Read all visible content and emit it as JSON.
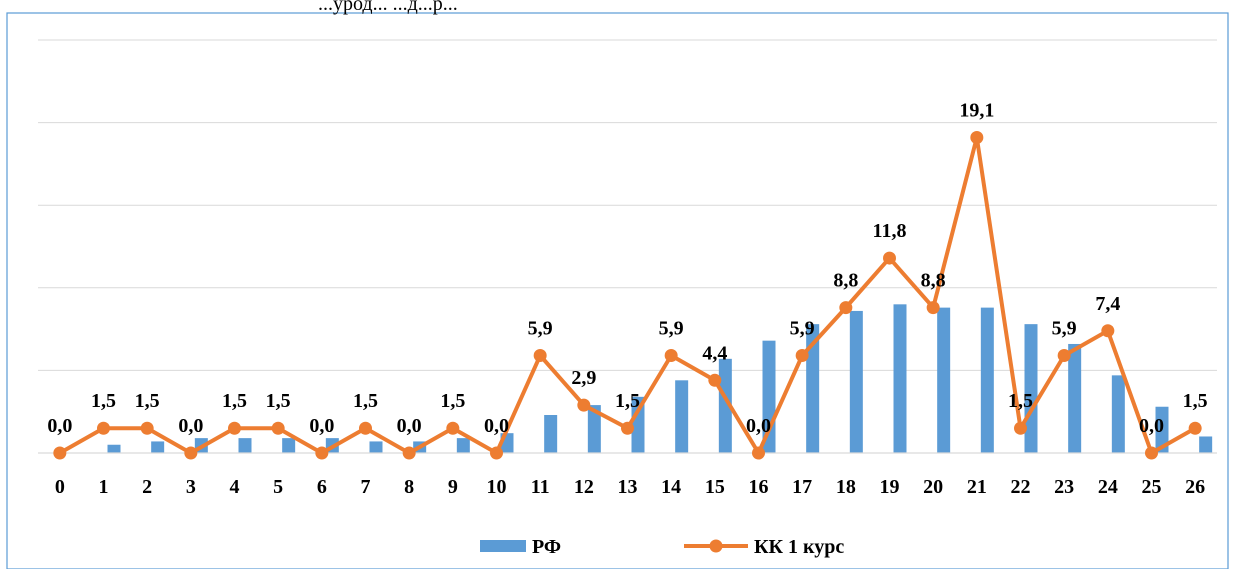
{
  "page": {
    "top_fragment": "...урод...     ...д...р..."
  },
  "chart_data": {
    "type": "bar+line",
    "title": "",
    "xlabel": "",
    "ylabel": "",
    "categories": [
      "0",
      "1",
      "2",
      "3",
      "4",
      "5",
      "6",
      "7",
      "8",
      "9",
      "10",
      "11",
      "12",
      "13",
      "14",
      "15",
      "16",
      "17",
      "18",
      "19",
      "20",
      "21",
      "22",
      "23",
      "24",
      "25",
      "26"
    ],
    "ylim": [
      0,
      25
    ],
    "grid": true,
    "legend_position": "bottom",
    "series": [
      {
        "name": "РФ",
        "kind": "bar",
        "color": "#5B9BD5",
        "values": [
          0.0,
          0.5,
          0.7,
          0.9,
          0.9,
          0.9,
          0.9,
          0.7,
          0.7,
          0.9,
          1.2,
          2.3,
          2.9,
          3.4,
          4.4,
          5.7,
          6.8,
          7.8,
          8.6,
          9.0,
          8.8,
          8.8,
          7.8,
          6.6,
          4.7,
          2.8,
          1.0
        ]
      },
      {
        "name": "КК 1 курс",
        "kind": "line",
        "color": "#ED7D31",
        "values": [
          0.0,
          1.5,
          1.5,
          0.0,
          1.5,
          1.5,
          0.0,
          1.5,
          0.0,
          1.5,
          0.0,
          5.9,
          2.9,
          1.5,
          5.9,
          4.4,
          0.0,
          5.9,
          8.8,
          11.8,
          8.8,
          19.1,
          1.5,
          5.9,
          7.4,
          0.0,
          1.5
        ],
        "labels": [
          "0,0",
          "1,5",
          "1,5",
          "0,0",
          "1,5",
          "1,5",
          "0,0",
          "1,5",
          "0,0",
          "1,5",
          "0,0",
          "5,9",
          "2,9",
          "1,5",
          "5,9",
          "4,4",
          "0,0",
          "5,9",
          "8,8",
          "11,8",
          "8,8",
          "19,1",
          "1,5",
          "5,9",
          "7,4",
          "0,0",
          "1,5"
        ]
      }
    ]
  }
}
